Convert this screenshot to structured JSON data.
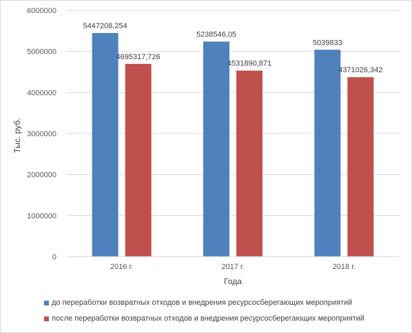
{
  "chart_data": {
    "type": "bar",
    "categories": [
      "2016 г.",
      "2017 г.",
      "2018 г."
    ],
    "series": [
      {
        "name": "до переработки возвратных отходов и внедрения ресурсосберегающих мероприятий",
        "values": [
          5447208.254,
          5238546.05,
          5039833
        ],
        "labels": [
          "5447208,254",
          "5238546,05",
          "5039833"
        ],
        "color": "#4f81bd"
      },
      {
        "name": "после переработки возвратных отходов и внедрения ресурсосберегающих мероприятий",
        "values": [
          4695317.726,
          4531890.871,
          4371026.342
        ],
        "labels": [
          "4695317,726",
          "4531890,871",
          "4371026,342"
        ],
        "color": "#c0504d"
      }
    ],
    "yticks": [
      "0",
      "1000000",
      "2000000",
      "3000000",
      "4000000",
      "5000000",
      "6000000"
    ],
    "ylim": [
      0,
      6000000
    ],
    "xlabel": "Года",
    "ylabel": "Тыс. руб.",
    "grid": "horizontal",
    "legend": "bottom"
  }
}
